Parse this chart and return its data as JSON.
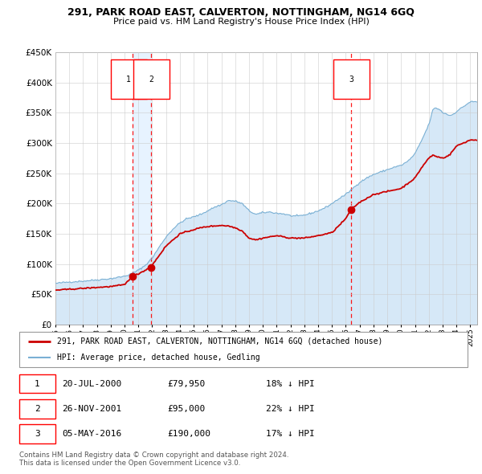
{
  "title": "291, PARK ROAD EAST, CALVERTON, NOTTINGHAM, NG14 6GQ",
  "subtitle": "Price paid vs. HM Land Registry's House Price Index (HPI)",
  "legend_line1": "291, PARK ROAD EAST, CALVERTON, NOTTINGHAM, NG14 6GQ (detached house)",
  "legend_line2": "HPI: Average price, detached house, Gedling",
  "transactions": [
    {
      "num": 1,
      "date": "20-JUL-2000",
      "price": 79950,
      "hpi_diff": "18% ↓ HPI"
    },
    {
      "num": 2,
      "date": "26-NOV-2001",
      "price": 95000,
      "hpi_diff": "22% ↓ HPI"
    },
    {
      "num": 3,
      "date": "05-MAY-2016",
      "price": 190000,
      "hpi_diff": "17% ↓ HPI"
    }
  ],
  "transaction_dates_decimal": [
    2000.55,
    2001.9,
    2016.35
  ],
  "transaction_prices": [
    79950,
    95000,
    190000
  ],
  "ylim": [
    0,
    450000
  ],
  "yticks": [
    0,
    50000,
    100000,
    150000,
    200000,
    250000,
    300000,
    350000,
    400000,
    450000
  ],
  "property_color": "#cc0000",
  "hpi_color": "#7ab0d4",
  "hpi_fill_color": "#d6e8f7",
  "background_color": "#ffffff",
  "grid_color": "#cccccc",
  "span_color": "#ddeeff",
  "footnote": "Contains HM Land Registry data © Crown copyright and database right 2024.\nThis data is licensed under the Open Government Licence v3.0."
}
